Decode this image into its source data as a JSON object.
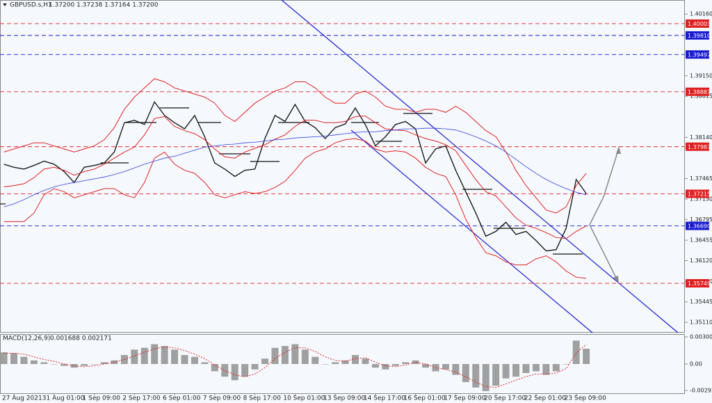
{
  "chart_data": [
    {
      "type": "line",
      "title": "GBPUSD.s,H1",
      "subtitle": "1.37200 1.37238 1.37164 1.37200",
      "categories": [
        null,
        "27 Aug 2021",
        null,
        null,
        null,
        "31 Aug 01:00",
        null,
        null,
        null,
        "1 Sep 09:00",
        null,
        null,
        null,
        "2 Sep 17:00",
        null,
        null,
        null,
        "6 Sep 01:00",
        null,
        null,
        null,
        "7 Sep 09:00",
        null,
        null,
        null,
        "8 Sep 17:00",
        null,
        null,
        null,
        "10 Sep 01:00",
        null,
        null,
        null,
        "13 Sep 09:00",
        null,
        null,
        null,
        "14 Sep 17:00",
        null,
        null,
        null,
        "16 Sep 01:00",
        null,
        null,
        null,
        "17 Sep 09:00",
        null,
        null,
        null,
        "20 Sep 17:00",
        null,
        null,
        null,
        "22 Sep 01:00",
        null,
        null,
        null,
        "23 Sep 09:00",
        null
      ],
      "series": [
        {
          "color": "#1a1a1a",
          "width": 1.4,
          "values": [
            1.377,
            1.3765,
            1.3762,
            1.3768,
            1.3775,
            1.377,
            1.3758,
            1.374,
            1.3765,
            1.3768,
            1.3772,
            1.379,
            1.3838,
            1.3842,
            1.3835,
            1.3872,
            1.385,
            1.3838,
            1.3828,
            1.385,
            1.3815,
            1.3772,
            1.3762,
            1.375,
            1.376,
            1.3762,
            1.3812,
            1.385,
            1.384,
            1.3868,
            1.384,
            1.383,
            1.3812,
            1.383,
            1.3836,
            1.3862,
            1.3835,
            1.38,
            1.3815,
            1.3835,
            1.384,
            1.3828,
            1.3772,
            1.3795,
            1.38,
            1.376,
            1.3725,
            1.369,
            1.3652,
            1.366,
            1.3675,
            1.3655,
            1.366,
            1.3645,
            1.3628,
            1.363,
            1.3665,
            1.3745,
            1.3722
          ]
        },
        {
          "color": "#e02020",
          "width": 1,
          "values": [
            1.379,
            1.3795,
            1.38,
            1.3805,
            1.3805,
            1.38,
            1.3795,
            1.379,
            1.3795,
            1.38,
            1.381,
            1.383,
            1.386,
            1.388,
            1.3895,
            1.391,
            1.3905,
            1.3895,
            1.389,
            1.3885,
            1.388,
            1.387,
            1.385,
            1.384,
            1.3855,
            1.387,
            1.388,
            1.389,
            1.3895,
            1.3905,
            1.3905,
            1.3895,
            1.388,
            1.387,
            1.387,
            1.3885,
            1.389,
            1.388,
            1.3865,
            1.386,
            1.386,
            1.3855,
            1.386,
            1.386,
            1.3855,
            1.3865,
            1.3855,
            1.384,
            1.3825,
            1.3815,
            1.379,
            1.376,
            1.3735,
            1.3715,
            1.3695,
            1.369,
            1.37,
            1.3735,
            1.3755
          ]
        },
        {
          "color": "#e02020",
          "width": 1,
          "values": [
            1.3733,
            1.3735,
            1.3738,
            1.3748,
            1.3762,
            1.3765,
            1.376,
            1.3752,
            1.3758,
            1.3762,
            1.377,
            1.378,
            1.379,
            1.3798,
            1.3818,
            1.3845,
            1.3848,
            1.3832,
            1.3825,
            1.382,
            1.381,
            1.3795,
            1.3782,
            1.378,
            1.379,
            1.3796,
            1.3802,
            1.3811,
            1.3818,
            1.3832,
            1.3842,
            1.3842,
            1.3838,
            1.3838,
            1.384,
            1.3848,
            1.3849,
            1.3838,
            1.3828,
            1.3826,
            1.3825,
            1.3818,
            1.3812,
            1.3808,
            1.3802,
            1.3792,
            1.3768,
            1.3745,
            1.3725,
            1.3718,
            1.37,
            1.3682,
            1.367,
            1.3665,
            1.3658,
            1.365,
            1.3648,
            1.366,
            1.3669
          ]
        },
        {
          "color": "#e02020",
          "width": 1,
          "values": [
            1.3676,
            1.3676,
            1.3676,
            1.369,
            1.372,
            1.373,
            1.3725,
            1.3715,
            1.372,
            1.3725,
            1.373,
            1.373,
            1.372,
            1.3715,
            1.374,
            1.378,
            1.379,
            1.377,
            1.376,
            1.3755,
            1.374,
            1.372,
            1.3715,
            1.372,
            1.3725,
            1.3722,
            1.3725,
            1.3732,
            1.3742,
            1.376,
            1.378,
            1.379,
            1.3795,
            1.3805,
            1.381,
            1.3812,
            1.3808,
            1.3795,
            1.379,
            1.3792,
            1.379,
            1.378,
            1.3765,
            1.3755,
            1.375,
            1.372,
            1.368,
            1.365,
            1.3625,
            1.362,
            1.361,
            1.3605,
            1.3605,
            1.3615,
            1.362,
            1.361,
            1.3595,
            1.3585,
            1.3583
          ]
        },
        {
          "color": "#3040e0",
          "width": 0.8,
          "values": [
            1.37,
            1.3705,
            1.3712,
            1.372,
            1.3727,
            1.3733,
            1.3737,
            1.374,
            1.3743,
            1.3746,
            1.3749,
            1.3753,
            1.3758,
            1.3764,
            1.377,
            1.3775,
            1.378,
            1.3783,
            1.3788,
            1.3793,
            1.3798,
            1.38,
            1.3802,
            1.3803,
            1.3805,
            1.3806,
            1.3808,
            1.381,
            1.3811,
            1.3813,
            1.3814,
            1.3815,
            1.3816,
            1.3818,
            1.382,
            1.3822,
            1.3823,
            1.3823,
            1.3825,
            1.3826,
            1.3828,
            1.3828,
            1.3829,
            1.3829,
            1.3828,
            1.3826,
            1.3821,
            1.3815,
            1.3808,
            1.38,
            1.379,
            1.3778,
            1.3766,
            1.3755,
            1.3745,
            1.3737,
            1.373,
            1.3724,
            1.372
          ]
        }
      ],
      "ylim": [
        1.3494,
        1.4039
      ],
      "yticks": [
        {
          "value": 1.4016,
          "label": "1.40160"
        },
        {
          "value": 1.3915,
          "label": "1.39150"
        },
        1.38815,
        {
          "value": 1.3814,
          "label": "1.38140"
        },
        1.37465,
        {
          "value": 1.3713,
          "label": "1.37130"
        },
        1.36795,
        1.36455,
        {
          "value": 1.3612,
          "label": "1.36120"
        },
        {
          "value": 1.3578,
          "label": "1.35780"
        },
        1.35445,
        {
          "value": 1.3511,
          "label": "1.35110"
        }
      ],
      "levels": [
        {
          "value": 1.40003,
          "color": "#e02020"
        },
        {
          "value": 1.3981,
          "label": "1.39810",
          "color": "#1a1ad0"
        },
        {
          "value": 1.39497,
          "color": "#1a1ad0"
        },
        {
          "value": 1.38887,
          "color": "#e02020"
        },
        {
          "value": 1.37987,
          "color": "#e02020"
        },
        {
          "value": 1.37215,
          "color": "#e02020"
        },
        {
          "value": 1.3669,
          "label": "1.36690",
          "color": "#1a1ad0"
        },
        {
          "value": 1.35749,
          "color": "#e02020"
        }
      ]
    },
    {
      "type": "macd",
      "title": "MACD(12,26,9)",
      "subtitle": "0.001688 0.002171",
      "series": [
        {
          "kind": "bar",
          "color": "#a0a0a0",
          "values": [
            0.0013,
            0.0012,
            0.0008,
            0.0004,
            0.0002,
            0,
            -0.0002,
            -0.0004,
            -0.0002,
            0,
            0.0002,
            0.0004,
            0.001,
            0.0016,
            0.0018,
            0.0022,
            0.002,
            0.0016,
            0.001,
            0.0008,
            0.0002,
            -0.0008,
            -0.0014,
            -0.0018,
            -0.0014,
            -0.0006,
            0.0006,
            0.0018,
            0.002,
            0.0022,
            0.0016,
            0.0008,
            0,
            0.0002,
            0.0004,
            0.001,
            0.0006,
            -0.0004,
            -0.0006,
            -0.0002,
            0.0002,
            0.0004,
            -0.0004,
            -0.0008,
            -0.0006,
            -0.0012,
            -0.002,
            -0.0026,
            -0.003,
            -0.0024,
            -0.0016,
            -0.0014,
            -0.001,
            -0.0008,
            -0.0012,
            -0.0008,
            0,
            0.0026,
            0.0017
          ]
        },
        {
          "kind": "line",
          "color": "#e02020",
          "values": [
            0.0012,
            0.0012,
            0.0011,
            0.0008,
            0.0005,
            0.0003,
            0,
            -0.0002,
            -0.0003,
            -0.0002,
            0,
            0.0002,
            0.0005,
            0.0009,
            0.0013,
            0.0017,
            0.0019,
            0.0018,
            0.0015,
            0.0011,
            0.0006,
            -0.0001,
            -0.0007,
            -0.0012,
            -0.0014,
            -0.0011,
            -0.0004,
            0.0006,
            0.0013,
            0.0018,
            0.0018,
            0.0014,
            0.0008,
            0.0004,
            0.0003,
            0.0006,
            0.0007,
            0.0002,
            -0.0002,
            -0.0003,
            -0.0001,
            0.0002,
            0,
            -0.0004,
            -0.0006,
            -0.0009,
            -0.0014,
            -0.002,
            -0.0025,
            -0.0026,
            -0.0022,
            -0.0018,
            -0.0014,
            -0.0011,
            -0.0011,
            -0.001,
            -0.0005,
            0.0012,
            0.0022
          ]
        }
      ],
      "ylim": [
        -0.00324,
        0.00332
      ],
      "yticks": [
        0.003008,
        {
          "value": 0,
          "label": "0.00"
        },
        -0.002922
      ]
    }
  ]
}
